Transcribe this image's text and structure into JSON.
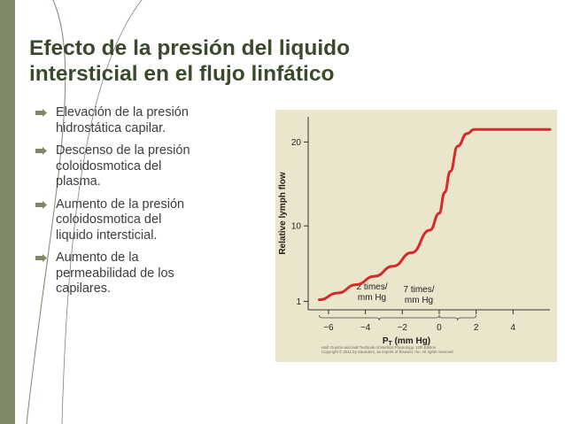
{
  "slide": {
    "title_lines": [
      "Efecto de la presión del liquido",
      "intersticial en el flujo linfático"
    ],
    "accent_color": "#7d8866",
    "bullet_icon": "arrow-right-icon",
    "bullets": [
      [
        "Elevación de la presión",
        "hidrostática capilar."
      ],
      [
        "Descenso de la presión",
        "coloidosmotica del",
        "plasma."
      ],
      [
        "Aumento de la presión",
        "coloidosmotica del",
        "liquido intersticial."
      ],
      [
        "Aumento de la",
        "permeabilidad de los",
        "capilares."
      ]
    ]
  },
  "figure": {
    "background": "#ebe5cc",
    "curve_color": "#d42a2a",
    "annotation_1": [
      "2 times/",
      "mm Hg"
    ],
    "annotation_2": [
      "7 times/",
      "mm Hg"
    ],
    "caption_line_1": "Hall: Guyton and Hall Textbook of Medical Physiology, 12th Edition",
    "caption_line_2": "Copyright © 2011 by Saunders, an imprint of Elsevier, Inc. All rights reserved.",
    "chart_data": {
      "type": "line",
      "xlabel": "PT (mm Hg)",
      "ylabel": "Relative lymph flow",
      "x_ticks": [
        -6,
        -4,
        -2,
        0,
        2,
        4
      ],
      "y_ticks": [
        1,
        10,
        20
      ],
      "xlim": [
        -7.1,
        6
      ],
      "ylim": [
        0,
        23
      ],
      "series": [
        {
          "x": [
            -6.5,
            -5.5,
            -4.5,
            -3.5,
            -2.5,
            -1.5,
            -0.5,
            0,
            0.3,
            0.6,
            1.0,
            1.5,
            1.9,
            2.2,
            6
          ],
          "y": [
            1.2,
            2.0,
            3.0,
            4.0,
            5.2,
            6.8,
            9.5,
            11.5,
            14.0,
            16.5,
            19.5,
            21.0,
            21.5,
            21.5,
            21.5
          ]
        }
      ]
    }
  }
}
